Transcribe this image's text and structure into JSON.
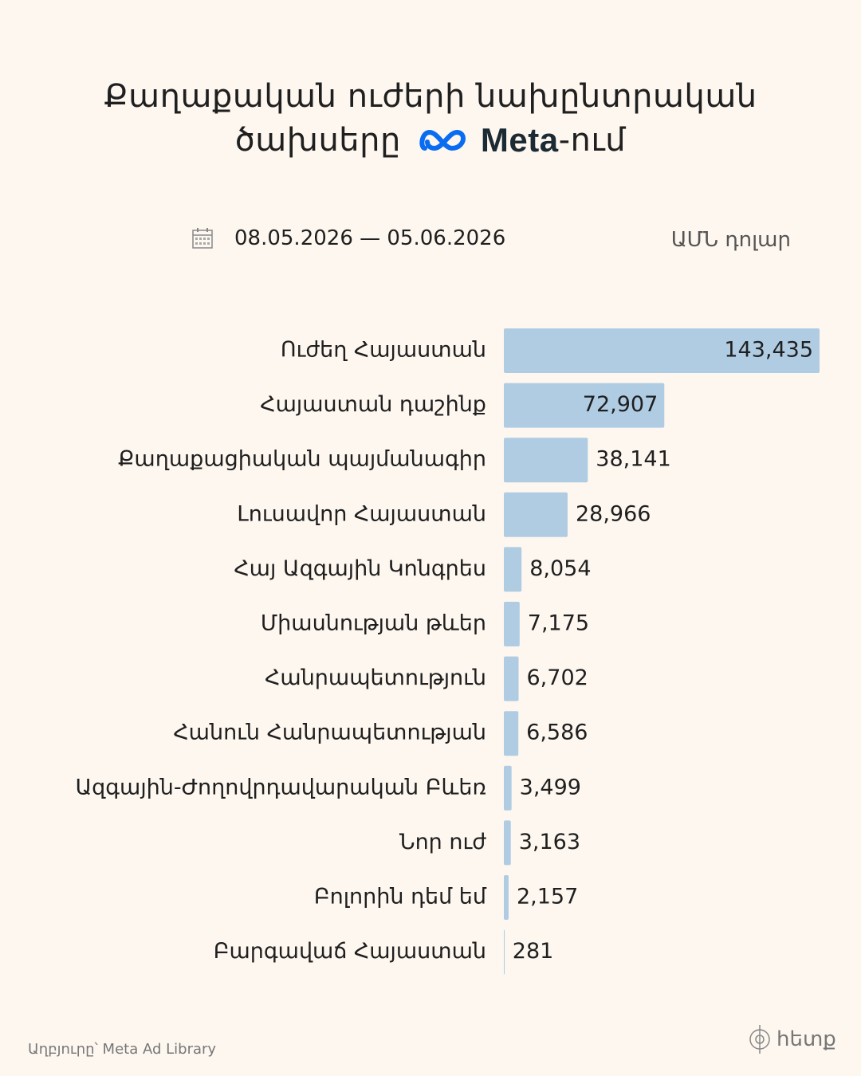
{
  "chart_data": {
    "type": "hbar",
    "title": "Քաղաքական ուժերի նախընտրական",
    "title_line2": "ծախսերը",
    "title_brand": "Meta",
    "title_suffix": "-ում",
    "date_range": "08.05.2026 — 05.06.2026",
    "unit": "ԱՄՆ դոլար",
    "source": "Աղբյուրը՝ Meta Ad Library",
    "publisher": "հետք",
    "color": "#b0cce3",
    "categories": [
      "Ուժեղ Հայաստան",
      "Հայաստան դաշինք",
      "Քաղաքացիական պայմանագիր",
      "Լուսավոր Հայաստան",
      "Հայ Ազգային Կոնգրես",
      "Միասնության թևեր",
      "Հանրապետություն",
      "Հանուն Հանրապետության",
      "Ազգային-Ժողովրդավարական Բևեռ",
      "Նոր ուժ",
      "Բոլորին դեմ եմ",
      "Բարգավաճ Հայաստան"
    ],
    "values": [
      143435,
      72907,
      38141,
      28966,
      8054,
      7175,
      6702,
      6586,
      3499,
      3163,
      2157,
      281
    ],
    "value_labels": [
      "143,435",
      "72,907",
      "38,141",
      "28,966",
      "8,054",
      "7,175",
      "6,702",
      "6,586",
      "3,499",
      "3,163",
      "2,157",
      "281"
    ]
  }
}
